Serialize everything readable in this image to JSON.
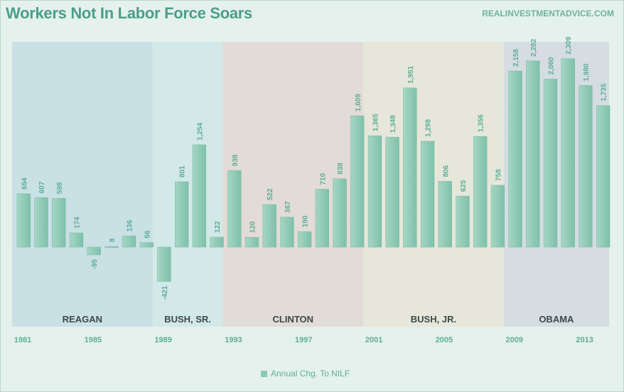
{
  "header": {
    "title": "Workers Not In Labor Force Soars",
    "source": "REALINVESTMENTADVICE.COM"
  },
  "chart_data": {
    "type": "bar",
    "categories": [
      1981,
      1982,
      1983,
      1984,
      1985,
      1986,
      1987,
      1988,
      1989,
      1990,
      1991,
      1992,
      1993,
      1994,
      1995,
      1996,
      1997,
      1998,
      1999,
      2000,
      2001,
      2002,
      2003,
      2004,
      2005,
      2006,
      2007,
      2008,
      2009,
      2010,
      2011,
      2012,
      2013,
      2014
    ],
    "series": [
      {
        "name": "Annual Chg. To NILF",
        "values": [
          654,
          607,
          598,
          174,
          -95,
          8,
          136,
          56,
          -421,
          801,
          1254,
          122,
          938,
          120,
          522,
          367,
          190,
          710,
          838,
          1609,
          1365,
          1348,
          1951,
          1298,
          806,
          625,
          1356,
          758,
          2158,
          2282,
          2060,
          2309,
          1980,
          1735
        ],
        "labels": [
          "654",
          "607",
          "598",
          "174",
          "-95",
          "8",
          "136",
          "56",
          "-421",
          "801",
          "1,254",
          "122",
          "938",
          "120",
          "522",
          "367",
          "190",
          "710",
          "838",
          "1,609",
          "1,365",
          "1,348",
          "1,951",
          "1,298",
          "806",
          "625",
          "1,356",
          "758",
          "2,158",
          "2,282",
          "2,060",
          "2,309",
          "1,980",
          "1,735"
        ]
      }
    ],
    "x_tick_labels": [
      "1981",
      "1985",
      "1989",
      "1993",
      "1997",
      "2001",
      "2005",
      "2009",
      "2013"
    ],
    "eras": [
      {
        "name": "REAGAN",
        "start": 1981,
        "end": 1988,
        "color": "#c9e0e5"
      },
      {
        "name": "BUSH, SR.",
        "start": 1989,
        "end": 1992,
        "color": "#d3e8e8"
      },
      {
        "name": "CLINTON",
        "start": 1993,
        "end": 2000,
        "color": "#e3dbd7"
      },
      {
        "name": "BUSH, JR.",
        "start": 2001,
        "end": 2008,
        "color": "#e6e7da"
      },
      {
        "name": "OBAMA",
        "start": 2009,
        "end": 2014,
        "color": "#d5dde2"
      }
    ],
    "ylim": [
      -620,
      2620
    ],
    "grid": false,
    "legend": "bottom-center",
    "colors": {
      "bar": "#8cc9b5",
      "bar_dark": "#5fae97",
      "label": "#5fae97",
      "era_label": "#3c4a48"
    }
  }
}
